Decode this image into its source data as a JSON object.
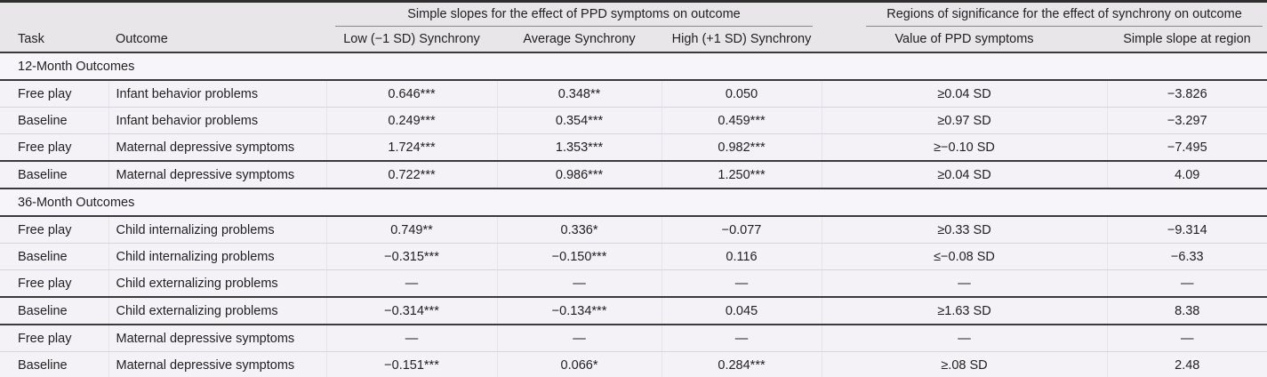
{
  "table": {
    "spanners": [
      {
        "label": "Simple slopes for the effect of PPD symptoms on outcome",
        "span_columns": [
          "low",
          "avg",
          "high"
        ]
      },
      {
        "label": "Regions of significance for the effect of synchrony on outcome",
        "span_columns": [
          "value",
          "slope"
        ]
      }
    ],
    "columns": [
      "Task",
      "Outcome",
      "Low (−1 SD) Synchrony",
      "Average Synchrony",
      "High (+1 SD) Synchrony",
      "Value of PPD symptoms",
      "Simple slope at region"
    ],
    "sections": [
      {
        "title": "12-Month Outcomes",
        "rows": [
          {
            "task": "Free play",
            "outcome": "Infant behavior problems",
            "low": "0.646***",
            "avg": "0.348**",
            "high": "0.050",
            "value": "≥0.04 SD",
            "slope": "−3.826",
            "divider": "thin"
          },
          {
            "task": "Baseline",
            "outcome": "Infant behavior problems",
            "low": "0.249***",
            "avg": "0.354***",
            "high": "0.459***",
            "value": "≥0.97 SD",
            "slope": "−3.297",
            "divider": "thin"
          },
          {
            "task": "Free play",
            "outcome": "Maternal depressive symptoms",
            "low": "1.724***",
            "avg": "1.353***",
            "high": "0.982***",
            "value": "≥−0.10 SD",
            "slope": "−7.495",
            "divider": "dark"
          },
          {
            "task": "Baseline",
            "outcome": "Maternal depressive symptoms",
            "low": "0.722***",
            "avg": "0.986***",
            "high": "1.250***",
            "value": "≥0.04 SD",
            "slope": "4.09",
            "divider": "dark"
          }
        ]
      },
      {
        "title": "36-Month Outcomes",
        "rows": [
          {
            "task": "Free play",
            "outcome": "Child internalizing problems",
            "low": "0.749**",
            "avg": "0.336*",
            "high": "−0.077",
            "value": "≥0.33 SD",
            "slope": "−9.314",
            "divider": "thin"
          },
          {
            "task": "Baseline",
            "outcome": "Child internalizing problems",
            "low": "−0.315***",
            "avg": "−0.150***",
            "high": "0.116",
            "value": "≤−0.08 SD",
            "slope": "−6.33",
            "divider": "thin"
          },
          {
            "task": "Free play",
            "outcome": "Child externalizing problems",
            "low": "—",
            "avg": "—",
            "high": "—",
            "value": "—",
            "slope": "—",
            "divider": "dark"
          },
          {
            "task": "Baseline",
            "outcome": "Child externalizing problems",
            "low": "−0.314***",
            "avg": "−0.134***",
            "high": "0.045",
            "value": "≥1.63 SD",
            "slope": "8.38",
            "divider": "dark"
          },
          {
            "task": "Free play",
            "outcome": "Maternal depressive symptoms",
            "low": "—",
            "avg": "—",
            "high": "—",
            "value": "—",
            "slope": "—",
            "divider": "thin"
          },
          {
            "task": "Baseline",
            "outcome": "Maternal depressive symptoms",
            "low": "−0.151***",
            "avg": "0.066*",
            "high": "0.284***",
            "value": "≥.08 SD",
            "slope": "2.48",
            "divider": "end"
          }
        ]
      }
    ]
  },
  "colors": {
    "header_background": "#e9e6ea",
    "row_background": "#f4f1f7",
    "section_row_background": "#f7f5fa",
    "rule_dark": "#3a3a3a",
    "rule_thin": "#d8d4db",
    "text": "#212121"
  }
}
